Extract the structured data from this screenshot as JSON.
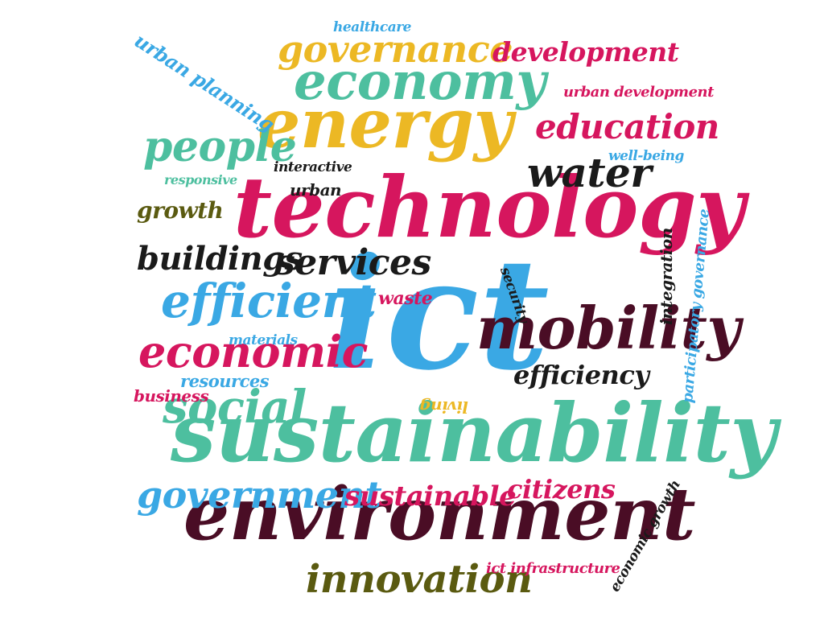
{
  "palette": {
    "teal": "#4dbf9f",
    "crimson": "#d6165e",
    "gold": "#ecb824",
    "sky": "#3aa8e4",
    "maroon": "#4a0d25",
    "black": "#1a1a1a",
    "olive": "#5a5a10"
  },
  "words": [
    {
      "text": "ict",
      "color": "sky"
    },
    {
      "text": "technology",
      "color": "crimson"
    },
    {
      "text": "sustainability",
      "color": "teal"
    },
    {
      "text": "environment",
      "color": "maroon"
    },
    {
      "text": "energy",
      "color": "gold"
    },
    {
      "text": "economy",
      "color": "teal"
    },
    {
      "text": "mobility",
      "color": "maroon"
    },
    {
      "text": "governance",
      "color": "gold"
    },
    {
      "text": "development",
      "color": "crimson"
    },
    {
      "text": "education",
      "color": "crimson"
    },
    {
      "text": "water",
      "color": "black"
    },
    {
      "text": "people",
      "color": "teal"
    },
    {
      "text": "efficient",
      "color": "sky"
    },
    {
      "text": "economic",
      "color": "crimson"
    },
    {
      "text": "social",
      "color": "teal"
    },
    {
      "text": "services",
      "color": "black"
    },
    {
      "text": "buildings",
      "color": "black"
    },
    {
      "text": "innovation",
      "color": "olive"
    },
    {
      "text": "government",
      "color": "sky"
    },
    {
      "text": "sustainable",
      "color": "crimson"
    },
    {
      "text": "citizens",
      "color": "crimson"
    },
    {
      "text": "efficiency",
      "color": "black"
    },
    {
      "text": "growth",
      "color": "olive"
    },
    {
      "text": "urban planning",
      "color": "sky"
    },
    {
      "text": "healthcare",
      "color": "sky"
    },
    {
      "text": "urban development",
      "color": "crimson"
    },
    {
      "text": "well-being",
      "color": "sky"
    },
    {
      "text": "interactive",
      "color": "black"
    },
    {
      "text": "urban",
      "color": "black"
    },
    {
      "text": "responsive",
      "color": "teal"
    },
    {
      "text": "waste",
      "color": "crimson"
    },
    {
      "text": "materials",
      "color": "sky"
    },
    {
      "text": "resources",
      "color": "sky"
    },
    {
      "text": "business",
      "color": "crimson"
    },
    {
      "text": "living",
      "color": "gold"
    },
    {
      "text": "security",
      "color": "black"
    },
    {
      "text": "integration",
      "color": "black"
    },
    {
      "text": "participatory governance",
      "color": "sky"
    },
    {
      "text": "economic growth",
      "color": "black"
    },
    {
      "text": "ict infrastructure",
      "color": "crimson"
    }
  ]
}
